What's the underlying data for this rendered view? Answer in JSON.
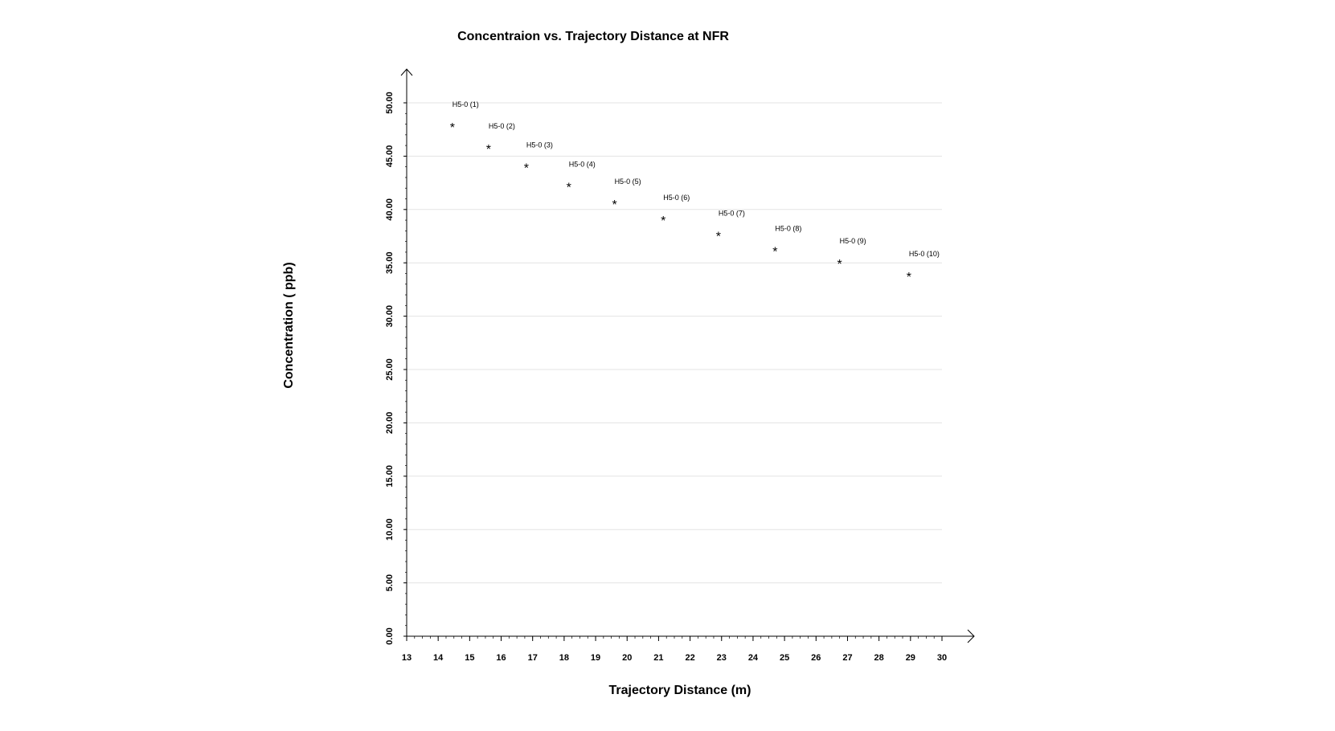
{
  "chart_data": {
    "type": "scatter",
    "title": "Concentraion vs. Trajectory Distance at NFR",
    "xlabel": "Trajectory Distance (m)",
    "ylabel": "Concentration ( ppb)",
    "xlim": [
      13,
      30
    ],
    "ylim": [
      0,
      50
    ],
    "x_ticks": [
      "13",
      "14",
      "15",
      "16",
      "17",
      "18",
      "19",
      "20",
      "21",
      "22",
      "23",
      "24",
      "25",
      "26",
      "27",
      "28",
      "29",
      "30"
    ],
    "y_ticks": [
      "0.00",
      "5.00",
      "10.00",
      "15.00",
      "20.00",
      "25.00",
      "30.00",
      "35.00",
      "40.00",
      "45.00",
      "50.00"
    ],
    "grid": "horizontal",
    "marker": "*",
    "points": [
      {
        "label": "H5-0 (1)",
        "x": 14.45,
        "y": 48.1
      },
      {
        "label": "H5-0 (2)",
        "x": 15.6,
        "y": 46.1
      },
      {
        "label": "H5-0 (3)",
        "x": 16.8,
        "y": 44.3
      },
      {
        "label": "H5-0 (4)",
        "x": 18.15,
        "y": 42.5
      },
      {
        "label": "H5-0 (5)",
        "x": 19.6,
        "y": 40.9
      },
      {
        "label": "H5-0 (6)",
        "x": 21.15,
        "y": 39.4
      },
      {
        "label": "H5-0 (7)",
        "x": 22.9,
        "y": 37.9
      },
      {
        "label": "H5-0 (8)",
        "x": 24.7,
        "y": 36.5
      },
      {
        "label": "H5-0 (9)",
        "x": 26.75,
        "y": 35.3
      },
      {
        "label": "H5-0 (10)",
        "x": 28.95,
        "y": 34.1
      }
    ]
  }
}
